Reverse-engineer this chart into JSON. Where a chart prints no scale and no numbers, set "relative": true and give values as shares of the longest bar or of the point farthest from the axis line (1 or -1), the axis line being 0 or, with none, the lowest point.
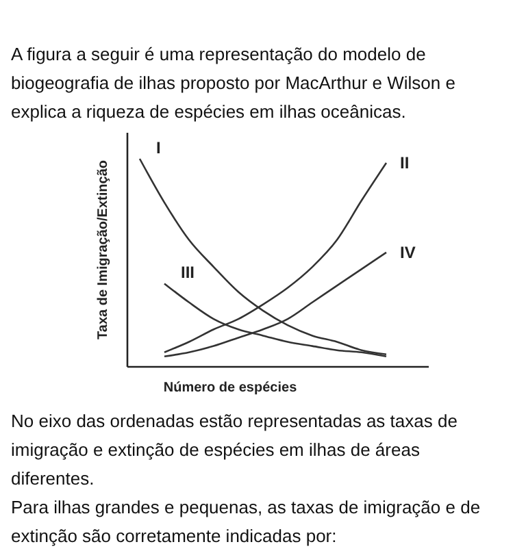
{
  "chart_data": {
    "type": "line",
    "relative": true,
    "title": "A figura a seguir é uma representação do modelo de biogeografia de ilhas proposto por MacArthur e Wilson e explica a riqueza de espécies em ilhas oceânicas.",
    "xlabel": "Número de espécies",
    "ylabel": "Taxa de Imigração/Extinção",
    "categories": [
      null,
      null,
      null,
      null,
      null,
      null,
      null,
      null,
      null,
      null,
      null
    ],
    "series": [
      {
        "name": "I",
        "color": "#333333",
        "values": [
          1,
          0.79,
          0.61,
          0.48,
          0.36,
          0.27,
          0.2,
          0.15,
          0.12,
          0.08,
          0.06
        ]
      },
      {
        "name": "II",
        "color": "#333333",
        "values": [
          null,
          0.07,
          0.12,
          0.18,
          0.23,
          0.3,
          0.38,
          0.48,
          0.61,
          0.8,
          0.98
        ]
      },
      {
        "name": "III",
        "color": "#333333",
        "values": [
          null,
          0.4,
          0.31,
          0.23,
          0.18,
          0.15,
          0.12,
          0.1,
          0.08,
          0.07,
          0.05
        ]
      },
      {
        "name": "IV",
        "color": "#333333",
        "values": [
          null,
          0.05,
          0.07,
          0.1,
          0.14,
          0.18,
          0.23,
          0.31,
          0.39,
          0.47,
          0.55
        ]
      }
    ],
    "annotations": [
      "No eixo das ordenadas estão representadas as taxas de imigração e extinção de espécies em ilhas de áreas diferentes.",
      "Para ilhas grandes e pequenas, as taxas de imigração e de extinção são corretamente indicadas por:"
    ],
    "legend": false,
    "marker": "none",
    "line_style": "solid"
  }
}
